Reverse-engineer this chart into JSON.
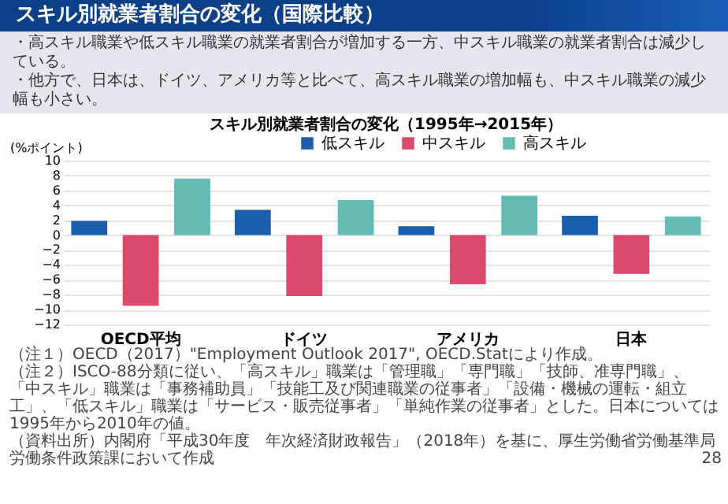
{
  "chart_data": {
    "type": "bar",
    "title": "スキル別就業者割合の変化（1995年→2015年）",
    "ylabel": "(%ポイント)",
    "categories": [
      "OECD平均",
      "ドイツ",
      "アメリカ",
      "日本"
    ],
    "series": [
      {
        "name": "低スキル",
        "color": "#1a5fad",
        "values": [
          1.9,
          3.4,
          1.2,
          2.6
        ]
      },
      {
        "name": "中スキル",
        "color": "#d94a6c",
        "values": [
          -9.5,
          -8.2,
          -6.6,
          -5.2
        ]
      },
      {
        "name": "高スキル",
        "color": "#63bbb3",
        "values": [
          7.6,
          4.7,
          5.3,
          2.5
        ]
      }
    ],
    "ylim": [
      -12,
      10
    ],
    "yticks": [
      -12,
      -10,
      -8,
      -6,
      -4,
      -2,
      0,
      2,
      4,
      6,
      8,
      10
    ],
    "grid": "y",
    "legend": "top",
    "annotations": [
      "スキル別就業者割合の変化（国際比較）",
      "・高スキル職業や低スキル職業の就業者割合が増加する一方、中スキル職業の就業者割合は減少している。",
      "・他方で、日本は、ドイツ、アメリカ等と比べて、高スキル職業の増加幅も、中スキル職業の減少幅も小さい。",
      "（注１）OECD（2017）\"Employment Outlook 2017\", OECD.Statにより作成。",
      "（注２）ISCO-88分類に従い、「高スキル」職業は「管理職」「専門職」「技師、准専門職」、「中スキル」職業は「事務補助員」「技能工及び関連職業の従事者」「設備・機械の運転・組立工」、「低スキル」職業は「サービス・販売従事者」「単純作業の従事者」とした。日本については1995年から2010年の値。",
      "（資料出所）内閣府「平成30年度　年次経済財政報告」（2018年）を基に、厚生労働省労働基準局労働条件政策課において作成",
      "28"
    ]
  }
}
